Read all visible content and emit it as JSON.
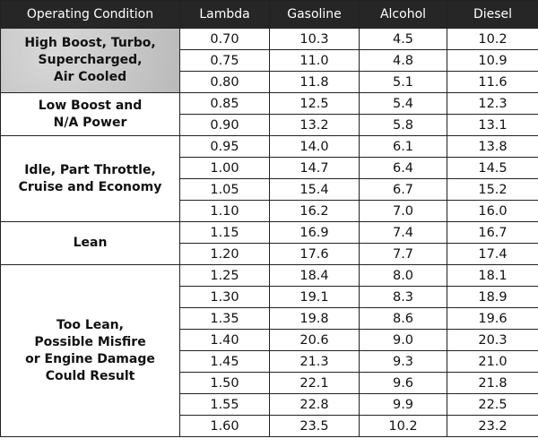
{
  "table": {
    "header": [
      "Operating Condition",
      "Lambda",
      "Gasoline",
      "Alcohol",
      "Diesel"
    ],
    "groups": [
      {
        "label": [
          "High Boost, Turbo,",
          "Supercharged,",
          "Air Cooled"
        ],
        "rows": [
          [
            "0.70",
            "10.3",
            "4.5",
            "10.2"
          ],
          [
            "0.75",
            "11.0",
            "4.8",
            "10.9"
          ],
          [
            "0.80",
            "11.8",
            "5.1",
            "11.6"
          ]
        ]
      },
      {
        "label": [
          "Low Boost and",
          "N/A Power"
        ],
        "rows": [
          [
            "0.85",
            "12.5",
            "5.4",
            "12.3"
          ],
          [
            "0.90",
            "13.2",
            "5.8",
            "13.1"
          ]
        ]
      },
      {
        "label": [
          "Idle, Part Throttle,",
          "Cruise and Economy"
        ],
        "rows": [
          [
            "0.95",
            "14.0",
            "6.1",
            "13.8"
          ],
          [
            "1.00",
            "14.7",
            "6.4",
            "14.5"
          ],
          [
            "1.05",
            "15.4",
            "6.7",
            "15.2"
          ],
          [
            "1.10",
            "16.2",
            "7.0",
            "16.0"
          ]
        ]
      },
      {
        "label": [
          "Lean"
        ],
        "rows": [
          [
            "1.15",
            "16.9",
            "7.4",
            "16.7"
          ],
          [
            "1.20",
            "17.6",
            "7.7",
            "17.4"
          ]
        ]
      },
      {
        "label": [
          "Too Lean,",
          "Possible Misfire",
          "or Engine Damage",
          "Could Result"
        ],
        "rows": [
          [
            "1.25",
            "18.4",
            "8.0",
            "18.1"
          ],
          [
            "1.30",
            "19.1",
            "8.3",
            "18.9"
          ],
          [
            "1.35",
            "19.8",
            "8.6",
            "19.6"
          ],
          [
            "1.40",
            "20.6",
            "9.0",
            "20.3"
          ],
          [
            "1.45",
            "21.3",
            "9.3",
            "21.0"
          ],
          [
            "1.50",
            "22.1",
            "9.6",
            "21.8"
          ],
          [
            "1.55",
            "22.8",
            "9.9",
            "22.5"
          ],
          [
            "1.60",
            "23.5",
            "10.2",
            "23.2"
          ]
        ]
      }
    ]
  }
}
